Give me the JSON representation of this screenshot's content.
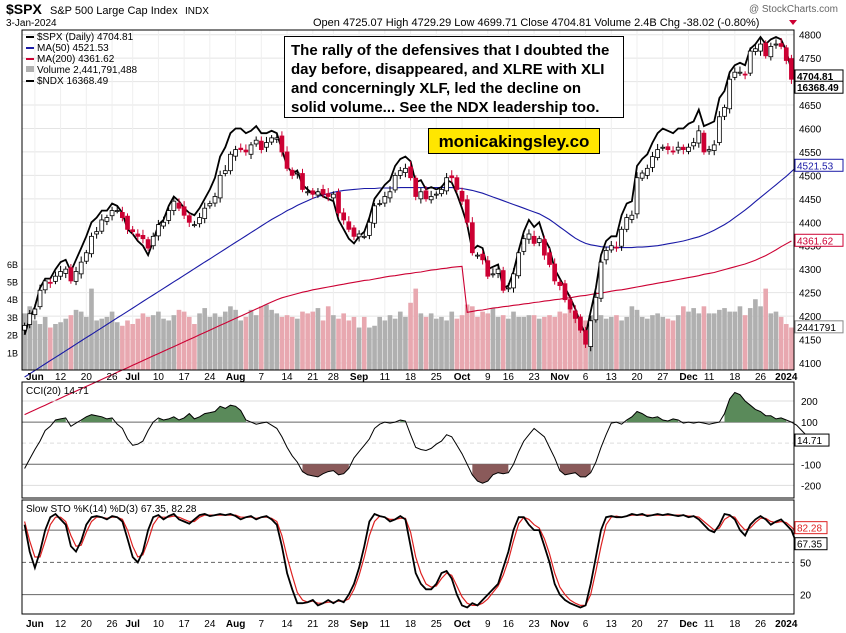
{
  "header": {
    "symbol": "$SPX",
    "name": "S&P 500 Large Cap Index",
    "exchange": "INDX",
    "date": "3-Jan-2024",
    "ohlc": "Open 4725.07  High 4729.29  Low 4699.71  Close 4704.81  Volume 2.4B  Chg -38.02 (-0.80%)",
    "watermark": "@ StockCharts.com"
  },
  "legend": {
    "price": "$SPX (Daily) 4704.81",
    "ma50": "MA(50) 4521.53",
    "ma200": "MA(200) 4361.62",
    "volume": "Volume 2,441,791,488",
    "ndx": "$NDX 16368.49"
  },
  "annotation": "The rally of the defensives that I doubted the day before, disappeared, and XLRE with XLI and concerningly XLF, led the decline on solid volume... See the NDX leadership too.",
  "brand": "monicakingsley.co",
  "colors": {
    "up": "#000000",
    "down": "#cc0033",
    "ma50": "#1a1aa6",
    "ma200": "#cc0033",
    "ndx": "#000000",
    "cciFill": "#5a8a5a",
    "cciNeg": "#8a5a5a",
    "stoK": "#000000",
    "stoD": "#dd2222",
    "volUp": "#b0b0b0",
    "volDown": "#e8a8b0"
  },
  "chart_data": [
    {
      "type": "candlestick",
      "title": "$SPX (Daily)",
      "ylim": [
        4085,
        4810
      ],
      "yticks": [
        4100,
        4150,
        4200,
        4250,
        4300,
        4350,
        4400,
        4450,
        4500,
        4550,
        4600,
        4650,
        4700,
        4750,
        4800
      ],
      "ytick_labels": [
        "4100",
        "4150",
        "4200",
        "4250",
        "4300",
        "4350",
        "4400",
        "4450",
        "4500",
        "4550",
        "4600",
        "4650",
        "4700",
        "4750",
        "4800"
      ],
      "last_labels": {
        "close": "4704.81",
        "ndx": "16368.49",
        "ma50": "4521.53",
        "ma200": "4361.62",
        "volume": "2441791"
      },
      "vol_labels": [
        "6B",
        "5B",
        "4B",
        "3B",
        "2B",
        "1B"
      ],
      "xaxis_labels": [
        "Jun",
        "12",
        "20",
        "26",
        "Jul",
        "10",
        "17",
        "24",
        "Aug",
        "7",
        "14",
        "21",
        "28",
        "Sep",
        "11",
        "18",
        "25",
        "Oct",
        "9",
        "16",
        "23",
        "Nov",
        "6",
        "13",
        "20",
        "27",
        "Dec",
        "11",
        "18",
        "26",
        "2024"
      ],
      "closes": [
        4180,
        4205,
        4215,
        4255,
        4275,
        4270,
        4285,
        4295,
        4300,
        4275,
        4295,
        4315,
        4335,
        4370,
        4380,
        4405,
        4410,
        4425,
        4425,
        4410,
        4385,
        4380,
        4370,
        4365,
        4345,
        4370,
        4395,
        4400,
        4425,
        4445,
        4430,
        4415,
        4400,
        4395,
        4410,
        4430,
        4440,
        4455,
        4500,
        4510,
        4545,
        4555,
        4555,
        4550,
        4565,
        4575,
        4555,
        4570,
        4580,
        4580,
        4550,
        4515,
        4500,
        4505,
        4470,
        4465,
        4460,
        4465,
        4460,
        4455,
        4460,
        4420,
        4405,
        4385,
        4370,
        4375,
        4370,
        4400,
        4435,
        4440,
        4455,
        4465,
        4500,
        4510,
        4515,
        4495,
        4455,
        4465,
        4450,
        4455,
        4460,
        4470,
        4495,
        4495,
        4470,
        4445,
        4400,
        4335,
        4330,
        4320,
        4285,
        4290,
        4300,
        4255,
        4260,
        4290,
        4335,
        4365,
        4375,
        4355,
        4365,
        4330,
        4310,
        4275,
        4265,
        4235,
        4215,
        4195,
        4170,
        4140,
        4190,
        4240,
        4315,
        4340,
        4350,
        4345,
        4385,
        4410,
        4415,
        4495,
        4505,
        4515,
        4540,
        4555,
        4560,
        4555,
        4550,
        4560,
        4555,
        4560,
        4570,
        4595,
        4550,
        4555,
        4565,
        4625,
        4645,
        4705,
        4720,
        4720,
        4715,
        4765,
        4770,
        4780,
        4755,
        4775,
        4780,
        4775,
        4745,
        4705
      ],
      "ma50": [
        4070,
        4077,
        4084,
        4091,
        4098,
        4105,
        4112,
        4119,
        4126,
        4133,
        4140,
        4147,
        4154,
        4161,
        4168,
        4175,
        4182,
        4189,
        4196,
        4203,
        4210,
        4217,
        4224,
        4231,
        4238,
        4245,
        4252,
        4259,
        4266,
        4273,
        4280,
        4287,
        4294,
        4301,
        4308,
        4315,
        4322,
        4329,
        4336,
        4343,
        4350,
        4357,
        4364,
        4371,
        4378,
        4385,
        4392,
        4399,
        4406,
        4412,
        4418,
        4425,
        4430,
        4436,
        4441,
        4446,
        4451,
        4455,
        4458,
        4461,
        4464,
        4466,
        4468,
        4469,
        4470,
        4471,
        4472,
        4472,
        4472,
        4473,
        4473,
        4473,
        4473,
        4474,
        4474,
        4474,
        4474,
        4474,
        4474,
        4474,
        4474,
        4474,
        4474,
        4474,
        4473,
        4472,
        4470,
        4468,
        4465,
        4462,
        4458,
        4454,
        4450,
        4446,
        4442,
        4438,
        4434,
        4430,
        4426,
        4422,
        4418,
        4412,
        4406,
        4398,
        4390,
        4382,
        4374,
        4366,
        4360,
        4355,
        4352,
        4350,
        4348,
        4347,
        4347,
        4346,
        4346,
        4346,
        4346,
        4347,
        4347,
        4348,
        4349,
        4350,
        4352,
        4354,
        4356,
        4358,
        4360,
        4363,
        4366,
        4369,
        4373,
        4378,
        4383,
        4389,
        4395,
        4402,
        4410,
        4418,
        4426,
        4435,
        4444,
        4453,
        4462,
        4471,
        4480,
        4489,
        4498,
        4508,
        4518
      ],
      "ma200": [
        3990,
        3995,
        4000,
        4005,
        4010,
        4015,
        4020,
        4025,
        4030,
        4035,
        4040,
        4045,
        4050,
        4055,
        4060,
        4065,
        4070,
        4075,
        4080,
        4085,
        4090,
        4095,
        4100,
        4105,
        4110,
        4115,
        4120,
        4125,
        4130,
        4135,
        4140,
        4145,
        4150,
        4155,
        4160,
        4165,
        4170,
        4175,
        4180,
        4185,
        4190,
        4195,
        4200,
        4205,
        4210,
        4215,
        4220,
        4225,
        4230,
        4235,
        4239,
        4242,
        4245,
        4248,
        4251,
        4253,
        4256,
        4258,
        4260,
        4262,
        4264,
        4266,
        4268,
        4270,
        4272,
        4274,
        4276,
        4277,
        4279,
        4281,
        4283,
        4285,
        4286,
        4288,
        4290,
        4291,
        4293,
        4294,
        4296,
        4298,
        4299,
        4301,
        4302,
        4304,
        4305,
        4306,
        4208,
        4210,
        4212,
        4213,
        4215,
        4217,
        4218,
        4220,
        4221,
        4223,
        4224,
        4226,
        4227,
        4229,
        4230,
        4232,
        4233,
        4235,
        4236,
        4238,
        4239,
        4241,
        4243,
        4244,
        4246,
        4248,
        4249,
        4251,
        4253,
        4255,
        4256,
        4258,
        4260,
        4262,
        4264,
        4266,
        4268,
        4270,
        4272,
        4274,
        4276,
        4278,
        4280,
        4282,
        4284,
        4286,
        4289,
        4291,
        4293,
        4296,
        4299,
        4302,
        4305,
        4308,
        4311,
        4315,
        4319,
        4324,
        4329,
        4335,
        4341,
        4348,
        4354,
        4360
      ],
      "ndx": [
        4160,
        4195,
        4220,
        4260,
        4280,
        4280,
        4300,
        4315,
        4320,
        4295,
        4320,
        4345,
        4370,
        4400,
        4410,
        4425,
        4425,
        4440,
        4435,
        4420,
        4385,
        4375,
        4360,
        4350,
        4330,
        4360,
        4395,
        4405,
        4435,
        4455,
        4445,
        4430,
        4420,
        4415,
        4430,
        4450,
        4470,
        4495,
        4540,
        4560,
        4590,
        4600,
        4600,
        4590,
        4595,
        4605,
        4590,
        4590,
        4595,
        4590,
        4555,
        4520,
        4505,
        4510,
        4480,
        4470,
        4460,
        4465,
        4455,
        4450,
        4445,
        4405,
        4385,
        4365,
        4355,
        4370,
        4380,
        4410,
        4450,
        4465,
        4480,
        4490,
        4520,
        4535,
        4540,
        4530,
        4485,
        4490,
        4470,
        4475,
        4470,
        4475,
        4490,
        4485,
        4460,
        4430,
        4395,
        4340,
        4350,
        4345,
        4300,
        4305,
        4310,
        4260,
        4265,
        4295,
        4340,
        4380,
        4405,
        4390,
        4400,
        4365,
        4345,
        4300,
        4280,
        4260,
        4240,
        4215,
        4185,
        4160,
        4210,
        4260,
        4330,
        4360,
        4370,
        4370,
        4415,
        4440,
        4445,
        4520,
        4535,
        4545,
        4570,
        4590,
        4600,
        4595,
        4590,
        4600,
        4600,
        4610,
        4615,
        4640,
        4605,
        4610,
        4615,
        4665,
        4680,
        4720,
        4735,
        4740,
        4735,
        4770,
        4780,
        4795,
        4780,
        4790,
        4795,
        4790,
        4765,
        4725
      ],
      "volumes": [
        3.2,
        3.6,
        2.8,
        2.6,
        3.0,
        2.4,
        2.6,
        2.7,
        2.9,
        3.1,
        3.4,
        3.3,
        3.0,
        4.6,
        2.8,
        2.9,
        3.0,
        3.3,
        2.7,
        2.5,
        2.8,
        2.6,
        2.9,
        3.2,
        3.0,
        3.1,
        3.3,
        2.9,
        2.8,
        3.1,
        3.4,
        3.3,
        3.0,
        2.6,
        3.2,
        3.5,
        3.0,
        3.2,
        3.0,
        3.3,
        3.6,
        3.4,
        2.8,
        3.0,
        3.4,
        3.1,
        3.6,
        3.7,
        3.4,
        3.2,
        3.0,
        3.1,
        3.0,
        2.9,
        3.3,
        3.2,
        3.3,
        3.5,
        2.8,
        3.6,
        3.1,
        2.9,
        3.2,
        2.8,
        3.0,
        2.4,
        3.0,
        2.4,
        2.5,
        3.0,
        2.8,
        3.1,
        2.9,
        3.3,
        3.0,
        3.8,
        4.6,
        3.2,
        3.0,
        3.2,
        2.9,
        3.0,
        2.8,
        3.3,
        2.9,
        3.1,
        3.7,
        3.6,
        3.0,
        3.3,
        3.2,
        3.5,
        3.0,
        3.1,
        2.9,
        3.3,
        3.0,
        3.0,
        3.1,
        3.1,
        2.9,
        3.0,
        3.1,
        3.0,
        3.3,
        3.2,
        3.6,
        3.1,
        2.9,
        2.8,
        3.1,
        3.2,
        3.1,
        2.9,
        3.0,
        3.1,
        2.8,
        3.0,
        3.6,
        3.4,
        3.0,
        2.9,
        3.1,
        3.2,
        3.0,
        2.9,
        2.8,
        3.1,
        3.6,
        3.3,
        3.5,
        3.2,
        3.6,
        3.2,
        3.2,
        3.4,
        3.5,
        3.3,
        3.3,
        3.6,
        3.1,
        3.5,
        4.0,
        3.6,
        4.6,
        3.2,
        3.3,
        3.0,
        2.6,
        2.4
      ]
    },
    {
      "type": "line",
      "title": "CCI(20) 14.71",
      "ylim": [
        -260,
        290
      ],
      "yticks": [
        -200,
        -100,
        0,
        100,
        200
      ],
      "ytick_labels": [
        "-200",
        "-100",
        "",
        "100",
        "200"
      ],
      "last_label": "14.71",
      "xaxis_labels": [],
      "values": [
        -120,
        -75,
        -30,
        10,
        60,
        80,
        110,
        115,
        120,
        80,
        95,
        110,
        125,
        135,
        130,
        125,
        115,
        120,
        90,
        70,
        20,
        -10,
        -5,
        10,
        60,
        100,
        120,
        110,
        115,
        125,
        110,
        120,
        140,
        115,
        125,
        140,
        145,
        150,
        175,
        165,
        180,
        175,
        155,
        110,
        100,
        90,
        95,
        100,
        85,
        70,
        30,
        -20,
        -60,
        -90,
        -135,
        -150,
        -155,
        -160,
        -145,
        -135,
        -130,
        -150,
        -145,
        -120,
        -70,
        -40,
        -10,
        20,
        70,
        90,
        100,
        95,
        100,
        110,
        105,
        40,
        -20,
        -30,
        -35,
        -25,
        -5,
        10,
        40,
        30,
        -10,
        -50,
        -100,
        -150,
        -180,
        -190,
        -180,
        -150,
        -140,
        -145,
        -140,
        -100,
        -40,
        10,
        40,
        70,
        50,
        30,
        -20,
        -70,
        -130,
        -150,
        -145,
        -140,
        -160,
        -160,
        -140,
        -90,
        -20,
        40,
        95,
        100,
        90,
        110,
        125,
        150,
        140,
        125,
        120,
        125,
        110,
        105,
        115,
        110,
        95,
        100,
        95,
        100,
        95,
        90,
        95,
        100,
        140,
        210,
        240,
        230,
        200,
        180,
        160,
        150,
        130,
        130,
        115,
        120,
        110,
        100,
        85,
        60,
        35,
        15
      ]
    },
    {
      "type": "line",
      "title": "Slow STO %K(14) %D(3) 67.35, 82.28",
      "ylim": [
        2,
        108
      ],
      "yticks": [
        20,
        50,
        80
      ],
      "ytick_labels": [
        "20",
        "50",
        "80"
      ],
      "last_labels": {
        "k": "67.35",
        "d": "82.28"
      },
      "xaxis_labels": [
        "Jun",
        "12",
        "20",
        "26",
        "Jul",
        "10",
        "17",
        "24",
        "Aug",
        "7",
        "14",
        "21",
        "28",
        "Sep",
        "11",
        "18",
        "25",
        "Oct",
        "9",
        "16",
        "23",
        "Nov",
        "6",
        "13",
        "20",
        "27",
        "Dec",
        "11",
        "18",
        "26",
        "2024"
      ],
      "k": [
        85,
        60,
        45,
        60,
        80,
        92,
        95,
        90,
        85,
        65,
        60,
        70,
        85,
        92,
        93,
        92,
        90,
        93,
        92,
        88,
        72,
        55,
        50,
        60,
        80,
        92,
        94,
        90,
        93,
        95,
        90,
        88,
        86,
        90,
        94,
        95,
        93,
        94,
        95,
        94,
        95,
        93,
        90,
        92,
        93,
        90,
        92,
        93,
        90,
        85,
        65,
        40,
        25,
        12,
        12,
        13,
        15,
        10,
        12,
        15,
        12,
        15,
        13,
        20,
        30,
        45,
        65,
        88,
        95,
        93,
        92,
        88,
        90,
        93,
        90,
        65,
        40,
        30,
        25,
        25,
        30,
        40,
        42,
        35,
        20,
        10,
        8,
        12,
        10,
        15,
        20,
        25,
        30,
        45,
        60,
        80,
        92,
        92,
        85,
        80,
        80,
        65,
        50,
        30,
        20,
        15,
        12,
        10,
        8,
        10,
        30,
        55,
        80,
        92,
        93,
        92,
        92,
        93,
        95,
        94,
        95,
        93,
        94,
        95,
        94,
        95,
        94,
        93,
        94,
        92,
        93,
        90,
        85,
        80,
        78,
        85,
        95,
        94,
        90,
        80,
        75,
        85,
        90,
        93,
        90,
        85,
        88,
        90,
        85,
        80,
        67.35,
        72,
        67,
        67.35
      ],
      "d": [
        88,
        70,
        55,
        55,
        70,
        85,
        92,
        92,
        88,
        75,
        65,
        66,
        78,
        88,
        92,
        92,
        91,
        92,
        92,
        90,
        80,
        65,
        55,
        57,
        70,
        85,
        92,
        92,
        92,
        93,
        92,
        90,
        88,
        88,
        92,
        94,
        94,
        94,
        94,
        94,
        94,
        94,
        92,
        92,
        92,
        91,
        92,
        92,
        91,
        88,
        75,
        55,
        38,
        22,
        15,
        13,
        14,
        12,
        12,
        13,
        13,
        14,
        14,
        16,
        25,
        38,
        55,
        75,
        88,
        93,
        92,
        90,
        90,
        91,
        91,
        78,
        55,
        40,
        30,
        27,
        28,
        35,
        40,
        38,
        28,
        18,
        12,
        10,
        10,
        12,
        16,
        22,
        28,
        38,
        52,
        70,
        86,
        92,
        90,
        85,
        82,
        72,
        58,
        40,
        27,
        20,
        15,
        12,
        10,
        10,
        20,
        42,
        65,
        85,
        92,
        93,
        92,
        93,
        94,
        94,
        94,
        94,
        94,
        94,
        94,
        94,
        94,
        94,
        94,
        93,
        93,
        92,
        88,
        84,
        80,
        82,
        90,
        93,
        92,
        85,
        80,
        82,
        87,
        91,
        91,
        88,
        87,
        88,
        87,
        83,
        78,
        78,
        80,
        82.28
      ]
    }
  ]
}
